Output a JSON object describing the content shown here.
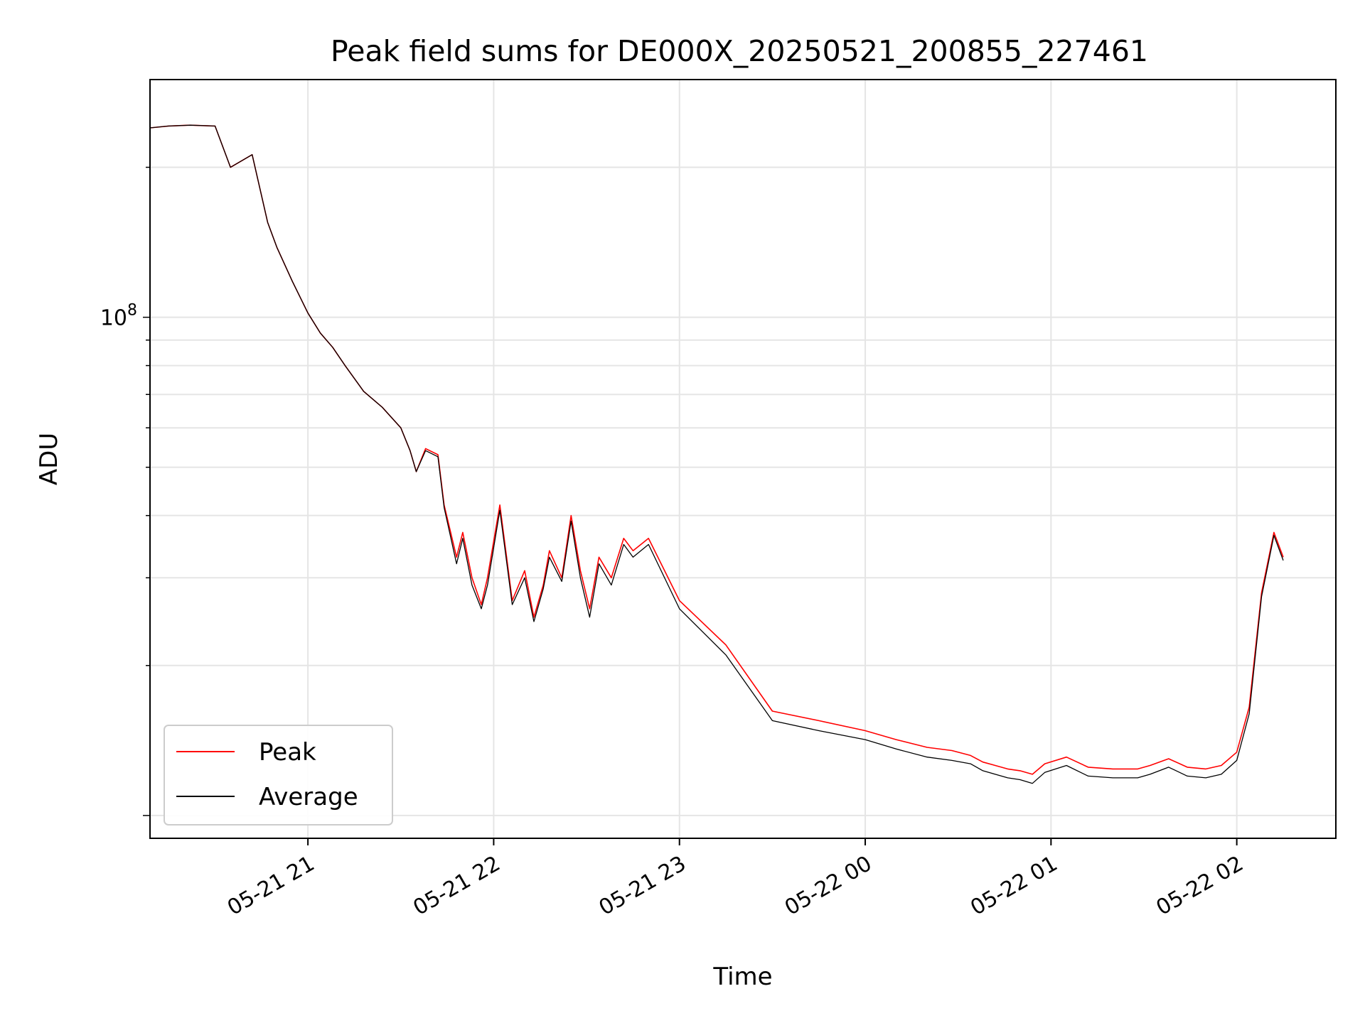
{
  "chart_data": {
    "type": "line",
    "title": "Peak field sums for DE000X_20250521_200855_227461",
    "xlabel": "Time",
    "ylabel": "ADU",
    "y_scale": "log",
    "xlim": [
      "2025-05-21 20:09",
      "2025-05-22 02:32"
    ],
    "ylim": [
      9000000.0,
      300000000.0
    ],
    "x_ticks": [
      "2025-05-21 21:00",
      "2025-05-21 22:00",
      "2025-05-21 23:00",
      "2025-05-22 00:00",
      "2025-05-22 01:00",
      "2025-05-22 02:00"
    ],
    "x_tick_labels": [
      "05-21 21",
      "05-21 22",
      "05-21 23",
      "05-22 00",
      "05-22 01",
      "05-22 02"
    ],
    "y_ticks": [
      100000000.0
    ],
    "y_tick_labels": [
      {
        "base": "10",
        "exp": "8"
      }
    ],
    "grid": true,
    "legend_position": "lower left",
    "series": [
      {
        "name": "Peak",
        "color": "#ff0000",
        "x": [
          "2025-05-21 20:09",
          "2025-05-21 20:15",
          "2025-05-21 20:22",
          "2025-05-21 20:30",
          "2025-05-21 20:35",
          "2025-05-21 20:42",
          "2025-05-21 20:47",
          "2025-05-21 20:50",
          "2025-05-21 20:55",
          "2025-05-21 21:00",
          "2025-05-21 21:04",
          "2025-05-21 21:08",
          "2025-05-21 21:12",
          "2025-05-21 21:18",
          "2025-05-21 21:24",
          "2025-05-21 21:30",
          "2025-05-21 21:33",
          "2025-05-21 21:35",
          "2025-05-21 21:38",
          "2025-05-21 21:42",
          "2025-05-21 21:44",
          "2025-05-21 21:48",
          "2025-05-21 21:50",
          "2025-05-21 21:53",
          "2025-05-21 21:56",
          "2025-05-21 21:58",
          "2025-05-21 22:02",
          "2025-05-21 22:06",
          "2025-05-21 22:10",
          "2025-05-21 22:13",
          "2025-05-21 22:16",
          "2025-05-21 22:18",
          "2025-05-21 22:22",
          "2025-05-21 22:25",
          "2025-05-21 22:28",
          "2025-05-21 22:31",
          "2025-05-21 22:34",
          "2025-05-21 22:38",
          "2025-05-21 22:42",
          "2025-05-21 22:45",
          "2025-05-21 22:50",
          "2025-05-21 23:00",
          "2025-05-21 23:15",
          "2025-05-21 23:30",
          "2025-05-21 23:45",
          "2025-05-22 00:00",
          "2025-05-22 00:10",
          "2025-05-22 00:20",
          "2025-05-22 00:28",
          "2025-05-22 00:34",
          "2025-05-22 00:38",
          "2025-05-22 00:42",
          "2025-05-22 00:46",
          "2025-05-22 00:50",
          "2025-05-22 00:54",
          "2025-05-22 00:58",
          "2025-05-22 01:05",
          "2025-05-22 01:12",
          "2025-05-22 01:20",
          "2025-05-22 01:28",
          "2025-05-22 01:32",
          "2025-05-22 01:38",
          "2025-05-22 01:44",
          "2025-05-22 01:50",
          "2025-05-22 01:55",
          "2025-05-22 02:00",
          "2025-05-22 02:04",
          "2025-05-22 02:08",
          "2025-05-22 02:12",
          "2025-05-22 02:15"
        ],
        "values": [
          240000000.0,
          242000000.0,
          243000000.0,
          242000000.0,
          200000000.0,
          212000000.0,
          155000000.0,
          138000000.0,
          118000000.0,
          102000000.0,
          93000000.0,
          87000000.0,
          80000000.0,
          71000000.0,
          66000000.0,
          60000000.0,
          54000000.0,
          49000000.0,
          54500000.0,
          53000000.0,
          42000000.0,
          33000000.0,
          37000000.0,
          30000000.0,
          26500000.0,
          30000000.0,
          42000000.0,
          27000000.0,
          31000000.0,
          25000000.0,
          29000000.0,
          34000000.0,
          30000000.0,
          40000000.0,
          31000000.0,
          26000000.0,
          33000000.0,
          30000000.0,
          36000000.0,
          34000000.0,
          36000000.0,
          27000000.0,
          22000000.0,
          16200000.0,
          15500000.0,
          14800000.0,
          14200000.0,
          13700000.0,
          13500000.0,
          13200000.0,
          12800000.0,
          12600000.0,
          12400000.0,
          12300000.0,
          12100000.0,
          12700000.0,
          13100000.0,
          12500000.0,
          12400000.0,
          12400000.0,
          12600000.0,
          13000000.0,
          12500000.0,
          12400000.0,
          12600000.0,
          13400000.0,
          16500000.0,
          28000000.0,
          37000000.0,
          33000000.0
        ]
      },
      {
        "name": "Average",
        "color": "#000000",
        "x": [
          "2025-05-21 20:09",
          "2025-05-21 20:15",
          "2025-05-21 20:22",
          "2025-05-21 20:30",
          "2025-05-21 20:35",
          "2025-05-21 20:42",
          "2025-05-21 20:47",
          "2025-05-21 20:50",
          "2025-05-21 20:55",
          "2025-05-21 21:00",
          "2025-05-21 21:04",
          "2025-05-21 21:08",
          "2025-05-21 21:12",
          "2025-05-21 21:18",
          "2025-05-21 21:24",
          "2025-05-21 21:30",
          "2025-05-21 21:33",
          "2025-05-21 21:35",
          "2025-05-21 21:38",
          "2025-05-21 21:42",
          "2025-05-21 21:44",
          "2025-05-21 21:48",
          "2025-05-21 21:50",
          "2025-05-21 21:53",
          "2025-05-21 21:56",
          "2025-05-21 21:58",
          "2025-05-21 22:02",
          "2025-05-21 22:06",
          "2025-05-21 22:10",
          "2025-05-21 22:13",
          "2025-05-21 22:16",
          "2025-05-21 22:18",
          "2025-05-21 22:22",
          "2025-05-21 22:25",
          "2025-05-21 22:28",
          "2025-05-21 22:31",
          "2025-05-21 22:34",
          "2025-05-21 22:38",
          "2025-05-21 22:42",
          "2025-05-21 22:45",
          "2025-05-21 22:50",
          "2025-05-21 23:00",
          "2025-05-21 23:15",
          "2025-05-21 23:30",
          "2025-05-21 23:45",
          "2025-05-22 00:00",
          "2025-05-22 00:10",
          "2025-05-22 00:20",
          "2025-05-22 00:28",
          "2025-05-22 00:34",
          "2025-05-22 00:38",
          "2025-05-22 00:42",
          "2025-05-22 00:46",
          "2025-05-22 00:50",
          "2025-05-22 00:54",
          "2025-05-22 00:58",
          "2025-05-22 01:05",
          "2025-05-22 01:12",
          "2025-05-22 01:20",
          "2025-05-22 01:28",
          "2025-05-22 01:32",
          "2025-05-22 01:38",
          "2025-05-22 01:44",
          "2025-05-22 01:50",
          "2025-05-22 01:55",
          "2025-05-22 02:00",
          "2025-05-22 02:04",
          "2025-05-22 02:08",
          "2025-05-22 02:12",
          "2025-05-22 02:15"
        ],
        "values": [
          240000000.0,
          242000000.0,
          243000000.0,
          242000000.0,
          200000000.0,
          212000000.0,
          155000000.0,
          138000000.0,
          118000000.0,
          102000000.0,
          93000000.0,
          87000000.0,
          80000000.0,
          71000000.0,
          66000000.0,
          60000000.0,
          54000000.0,
          49000000.0,
          54000000.0,
          52500000.0,
          41500000.0,
          32000000.0,
          36000000.0,
          29000000.0,
          26000000.0,
          29000000.0,
          41000000.0,
          26500000.0,
          30000000.0,
          24500000.0,
          28500000.0,
          33000000.0,
          29500000.0,
          39000000.0,
          30000000.0,
          25000000.0,
          32000000.0,
          29000000.0,
          35000000.0,
          33000000.0,
          35000000.0,
          26000000.0,
          21000000.0,
          15500000.0,
          14800000.0,
          14200000.0,
          13600000.0,
          13100000.0,
          12900000.0,
          12700000.0,
          12300000.0,
          12100000.0,
          11900000.0,
          11800000.0,
          11600000.0,
          12200000.0,
          12600000.0,
          12000000.0,
          11900000.0,
          11900000.0,
          12100000.0,
          12500000.0,
          12000000.0,
          11900000.0,
          12100000.0,
          12900000.0,
          16000000.0,
          27500000.0,
          36500000.0,
          32500000.0
        ]
      }
    ]
  }
}
